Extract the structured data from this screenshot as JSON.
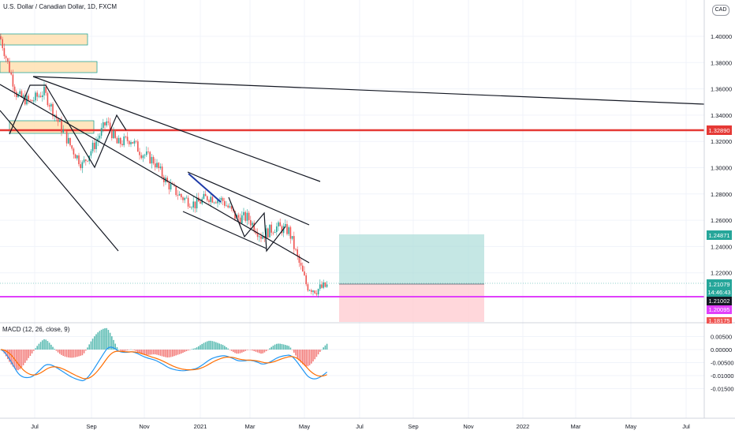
{
  "header": {
    "symbol_title": "U.S. Dollar / Canadian Dollar, 1D, FXCM",
    "currency": "CAD"
  },
  "macd": {
    "title": "MACD (12, 26, close, 9)",
    "ticks": [
      "0.00500",
      "0.00000",
      "-0.00500",
      "-0.01000",
      "-0.01500"
    ]
  },
  "price_axis": {
    "ticks": [
      "1.40000",
      "1.38000",
      "1.36000",
      "1.34000",
      "1.32000",
      "1.30000",
      "1.28000",
      "1.26000",
      "1.24000",
      "1.22000"
    ]
  },
  "badges": {
    "resistance": "1.32890",
    "target": "1.24871",
    "last_price": "1.21079",
    "countdown": "14:46:43",
    "entry": "1.21002",
    "support": "1.20095",
    "stop": "1.18175"
  },
  "time_axis": [
    "Jul",
    "Sep",
    "Nov",
    "2021",
    "Mar",
    "May",
    "Jul",
    "Sep",
    "Nov",
    "2022",
    "Mar",
    "May",
    "Jul"
  ],
  "colors": {
    "up": "#26a69a",
    "down": "#ef5350",
    "resistance": "#e53935",
    "support": "#e040fb",
    "macd_line": "#2196f3",
    "signal_line": "#ff6d00"
  },
  "chart_data": {
    "type": "candlestick",
    "title": "U.S. Dollar / Canadian Dollar, 1D, FXCM",
    "x_range": [
      "2020-06",
      "2022-07"
    ],
    "y_range": [
      1.175,
      1.425
    ],
    "key_levels": {
      "resistance": 1.3289,
      "support": 1.20095
    },
    "position": {
      "entry": 1.21002,
      "target": 1.24871,
      "stop": 1.18175
    },
    "close_path": [
      [
        "2020-06-01",
        1.4
      ],
      [
        "2020-06-20",
        1.355
      ],
      [
        "2020-07-05",
        1.35
      ],
      [
        "2020-07-20",
        1.358
      ],
      [
        "2020-08-05",
        1.335
      ],
      [
        "2020-08-20",
        1.315
      ],
      [
        "2020-09-01",
        1.302
      ],
      [
        "2020-09-15",
        1.318
      ],
      [
        "2020-09-28",
        1.335
      ],
      [
        "2020-10-10",
        1.318
      ],
      [
        "2020-10-25",
        1.322
      ],
      [
        "2020-11-05",
        1.312
      ],
      [
        "2020-11-20",
        1.305
      ],
      [
        "2020-12-05",
        1.288
      ],
      [
        "2020-12-20",
        1.278
      ],
      [
        "2021-01-05",
        1.272
      ],
      [
        "2021-01-20",
        1.278
      ],
      [
        "2021-02-05",
        1.275
      ],
      [
        "2021-02-20",
        1.262
      ],
      [
        "2021-03-05",
        1.262
      ],
      [
        "2021-03-20",
        1.248
      ],
      [
        "2021-04-05",
        1.255
      ],
      [
        "2021-04-20",
        1.252
      ],
      [
        "2021-05-01",
        1.228
      ],
      [
        "2021-05-10",
        1.21
      ],
      [
        "2021-05-20",
        1.207
      ],
      [
        "2021-06-02",
        1.21
      ]
    ],
    "macd_range": [
      -0.0175,
      0.007
    ]
  }
}
